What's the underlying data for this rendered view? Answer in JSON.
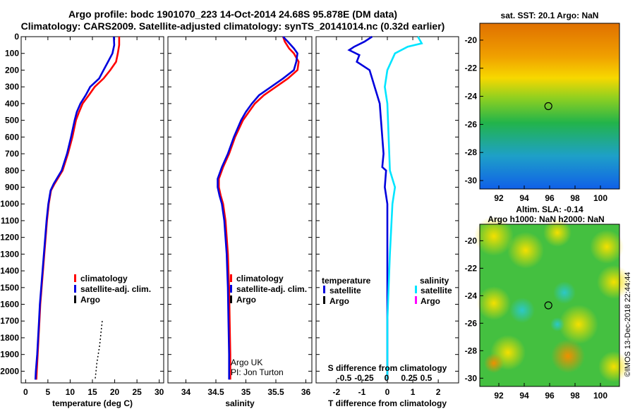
{
  "header": {
    "title1": "Argo profile: bodc 1901070_223 14-Oct-2014 24.68S 95.878E (DM data)",
    "title2": "Climatology: CARS2009. Satellite-adjusted climatology: synTS_20141014.nc (0.32d earlier)"
  },
  "colors": {
    "climatology": "#ff0000",
    "satellite": "#0000dd",
    "argo": "#000000",
    "satellite_s": "#00e5ff",
    "argo_s": "#ff00ff"
  },
  "chart_data": [
    {
      "type": "line",
      "title": "",
      "xlabel": "temperature (deg C)",
      "ylabel": "",
      "xlim": [
        -1,
        31
      ],
      "ylim": [
        2070,
        0
      ],
      "xticks": [
        "0",
        "5",
        "10",
        "15",
        "20",
        "25",
        "30"
      ],
      "yticks": [
        "0",
        "100",
        "200",
        "300",
        "400",
        "500",
        "600",
        "700",
        "800",
        "900",
        "1000",
        "1100",
        "1200",
        "1300",
        "1400",
        "1500",
        "1600",
        "1700",
        "1800",
        "1900",
        "2000"
      ],
      "legend": [
        "climatology",
        "satellite-adj. clim.",
        "Argo"
      ],
      "series": [
        {
          "name": "climatology",
          "color": "#ff0000",
          "points": [
            [
              21.0,
              0
            ],
            [
              21.0,
              50
            ],
            [
              20.7,
              100
            ],
            [
              20.3,
              150
            ],
            [
              19.0,
              200
            ],
            [
              17.5,
              250
            ],
            [
              15.5,
              300
            ],
            [
              14.2,
              350
            ],
            [
              12.8,
              400
            ],
            [
              12.0,
              450
            ],
            [
              11.3,
              500
            ],
            [
              10.5,
              600
            ],
            [
              9.5,
              700
            ],
            [
              8.3,
              800
            ],
            [
              6.5,
              880
            ],
            [
              5.7,
              920
            ],
            [
              5.2,
              1000
            ],
            [
              4.8,
              1100
            ],
            [
              4.5,
              1200
            ],
            [
              4.2,
              1300
            ],
            [
              3.9,
              1400
            ],
            [
              3.6,
              1500
            ],
            [
              3.3,
              1600
            ],
            [
              3.1,
              1700
            ],
            [
              2.9,
              1800
            ],
            [
              2.7,
              1900
            ],
            [
              2.5,
              2000
            ],
            [
              2.4,
              2050
            ]
          ]
        },
        {
          "name": "satellite-adj. clim.",
          "color": "#0000dd",
          "points": [
            [
              19.8,
              0
            ],
            [
              19.9,
              50
            ],
            [
              19.5,
              100
            ],
            [
              18.5,
              150
            ],
            [
              17.5,
              200
            ],
            [
              16.5,
              250
            ],
            [
              14.5,
              300
            ],
            [
              13.5,
              350
            ],
            [
              12.3,
              400
            ],
            [
              11.5,
              450
            ],
            [
              11.0,
              500
            ],
            [
              10.2,
              600
            ],
            [
              9.3,
              700
            ],
            [
              8.1,
              800
            ],
            [
              6.3,
              880
            ],
            [
              5.6,
              920
            ],
            [
              5.1,
              1000
            ],
            [
              4.7,
              1100
            ],
            [
              4.4,
              1200
            ],
            [
              4.1,
              1300
            ],
            [
              3.8,
              1400
            ],
            [
              3.5,
              1500
            ],
            [
              3.2,
              1600
            ],
            [
              3.0,
              1700
            ],
            [
              2.8,
              1800
            ],
            [
              2.6,
              1900
            ],
            [
              2.3,
              2000
            ],
            [
              2.2,
              2050
            ]
          ]
        },
        {
          "name": "Argo",
          "color": "#000000",
          "points": [
            [
              17.2,
              1700
            ],
            [
              17.0,
              1750
            ],
            [
              16.8,
              1800
            ],
            [
              16.6,
              1850
            ],
            [
              16.3,
              1900
            ],
            [
              16.0,
              1950
            ],
            [
              15.8,
              2000
            ],
            [
              15.6,
              2050
            ]
          ]
        }
      ]
    },
    {
      "type": "line",
      "title": "",
      "xlabel": "salinity",
      "ylabel": "",
      "xlim": [
        33.7,
        36.1
      ],
      "ylim": [
        2070,
        0
      ],
      "xticks": [
        "34",
        "34.5",
        "35",
        "35.5",
        "36"
      ],
      "legend": [
        "climatology",
        "satellite-adj. clim.",
        "Argo"
      ],
      "annotation": [
        "Argo UK",
        "PI: Jon Turton"
      ],
      "series": [
        {
          "name": "climatology",
          "color": "#ff0000",
          "points": [
            [
              35.62,
              0
            ],
            [
              35.65,
              30
            ],
            [
              35.72,
              70
            ],
            [
              35.8,
              100
            ],
            [
              35.88,
              150
            ],
            [
              35.86,
              200
            ],
            [
              35.7,
              250
            ],
            [
              35.5,
              300
            ],
            [
              35.3,
              350
            ],
            [
              35.15,
              400
            ],
            [
              35.05,
              450
            ],
            [
              34.95,
              500
            ],
            [
              34.82,
              600
            ],
            [
              34.72,
              700
            ],
            [
              34.62,
              780
            ],
            [
              34.55,
              850
            ],
            [
              34.55,
              900
            ],
            [
              34.58,
              950
            ],
            [
              34.62,
              1000
            ],
            [
              34.66,
              1100
            ],
            [
              34.68,
              1200
            ],
            [
              34.7,
              1300
            ],
            [
              34.71,
              1400
            ],
            [
              34.72,
              1500
            ],
            [
              34.73,
              1700
            ],
            [
              34.74,
              1900
            ],
            [
              34.74,
              2050
            ]
          ]
        },
        {
          "name": "satellite-adj. clim.",
          "color": "#0000dd",
          "points": [
            [
              35.62,
              0
            ],
            [
              35.7,
              30
            ],
            [
              35.8,
              70
            ],
            [
              35.86,
              100
            ],
            [
              35.84,
              150
            ],
            [
              35.8,
              200
            ],
            [
              35.62,
              250
            ],
            [
              35.42,
              300
            ],
            [
              35.22,
              350
            ],
            [
              35.1,
              400
            ],
            [
              35.0,
              450
            ],
            [
              34.92,
              500
            ],
            [
              34.8,
              600
            ],
            [
              34.7,
              700
            ],
            [
              34.6,
              780
            ],
            [
              34.53,
              850
            ],
            [
              34.53,
              900
            ],
            [
              34.56,
              950
            ],
            [
              34.6,
              1000
            ],
            [
              34.64,
              1100
            ],
            [
              34.66,
              1200
            ],
            [
              34.68,
              1300
            ],
            [
              34.69,
              1400
            ],
            [
              34.7,
              1500
            ],
            [
              34.71,
              1700
            ],
            [
              34.72,
              1900
            ],
            [
              34.72,
              2050
            ]
          ]
        }
      ]
    },
    {
      "type": "line",
      "title": "S difference from climatology",
      "xlabel": "T difference from climatology",
      "ylabel": "",
      "xlim": [
        -2.8,
        2.8
      ],
      "ylim": [
        2070,
        0
      ],
      "xticks": [
        "-2",
        "-1",
        "0",
        "1",
        "2"
      ],
      "x2ticks": [
        "-0.5",
        "-0.25",
        "0",
        "0.25",
        "0.5"
      ],
      "legend": {
        "temperature": "temperature",
        "salinity": "salinity",
        "sat_t": "satellite",
        "argo_t": "Argo",
        "sat_s": "satellite",
        "argo_s": "Argo"
      },
      "series": [
        {
          "name": "temperature satellite",
          "color": "#0000dd",
          "points": [
            [
              -0.6,
              0
            ],
            [
              -0.9,
              30
            ],
            [
              -1.3,
              60
            ],
            [
              -1.5,
              80
            ],
            [
              -1.1,
              110
            ],
            [
              -1.2,
              150
            ],
            [
              -0.7,
              200
            ],
            [
              -0.6,
              250
            ],
            [
              -0.5,
              300
            ],
            [
              -0.4,
              350
            ],
            [
              -0.3,
              400
            ],
            [
              -0.25,
              500
            ],
            [
              -0.2,
              600
            ],
            [
              -0.15,
              700
            ],
            [
              -0.2,
              780
            ],
            [
              -0.05,
              800
            ],
            [
              -0.1,
              900
            ],
            [
              0.0,
              1000
            ],
            [
              0.0,
              2050
            ]
          ]
        },
        {
          "name": "salinity satellite",
          "color": "#00e5ff",
          "points": [
            [
              1.2,
              0
            ],
            [
              1.35,
              40
            ],
            [
              0.8,
              60
            ],
            [
              0.3,
              100
            ],
            [
              0.0,
              200
            ],
            [
              -0.1,
              300
            ],
            [
              0.0,
              400
            ],
            [
              0.05,
              600
            ],
            [
              0.1,
              800
            ],
            [
              0.3,
              900
            ],
            [
              0.2,
              1000
            ],
            [
              0.1,
              1300
            ],
            [
              0.0,
              1700
            ],
            [
              0.0,
              2050
            ]
          ]
        }
      ]
    },
    {
      "type": "heatmap",
      "title": "sat. SST: 20.1 Argo: NaN",
      "xticks": [
        "92",
        "94",
        "96",
        "98",
        "100"
      ],
      "yticks": [
        "-20",
        "-22",
        "-24",
        "-26",
        "-28",
        "-30"
      ],
      "xlim": [
        90.5,
        101.5
      ],
      "ylim": [
        -30.6,
        -18.8
      ],
      "marker": [
        95.9,
        -24.7
      ]
    },
    {
      "type": "heatmap",
      "title": "Altim. SLA: -0.14",
      "subtitle": "Argo h1000: NaN h2000: NaN",
      "xticks": [
        "92",
        "94",
        "96",
        "98",
        "100"
      ],
      "yticks": [
        "-20",
        "-22",
        "-24",
        "-26",
        "-28",
        "-30"
      ],
      "xlim": [
        90.5,
        101.5
      ],
      "ylim": [
        -30.6,
        -18.8
      ],
      "marker": [
        95.9,
        -24.7
      ]
    }
  ],
  "footer": {
    "credit": "©IMOS 13-Dec-2018 22:44:44"
  }
}
